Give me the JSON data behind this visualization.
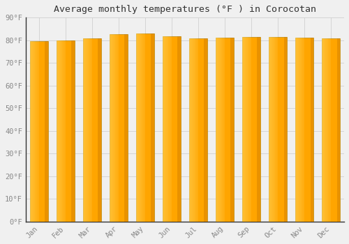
{
  "months": [
    "Jan",
    "Feb",
    "Mar",
    "Apr",
    "May",
    "Jun",
    "Jul",
    "Aug",
    "Sep",
    "Oct",
    "Nov",
    "Dec"
  ],
  "values": [
    79.7,
    79.9,
    81.0,
    82.6,
    82.9,
    81.8,
    81.0,
    81.1,
    81.5,
    81.5,
    81.1,
    80.8
  ],
  "bar_color_light": "#FFD966",
  "bar_color_main": "#FFA500",
  "bar_color_dark": "#E08000",
  "bar_edge_color": "#B8860B",
  "background_color": "#f0f0f0",
  "plot_bg_color": "#f0f0f0",
  "title": "Average monthly temperatures (°F ) in Corocotan",
  "title_fontsize": 9.5,
  "ylabel_ticks": [
    "0°F",
    "10°F",
    "20°F",
    "30°F",
    "40°F",
    "50°F",
    "60°F",
    "70°F",
    "80°F",
    "90°F"
  ],
  "ytick_values": [
    0,
    10,
    20,
    30,
    40,
    50,
    60,
    70,
    80,
    90
  ],
  "ylim": [
    0,
    90
  ],
  "grid_color": "#d0d0d0",
  "tick_label_color": "#888888",
  "spine_color": "#333333"
}
